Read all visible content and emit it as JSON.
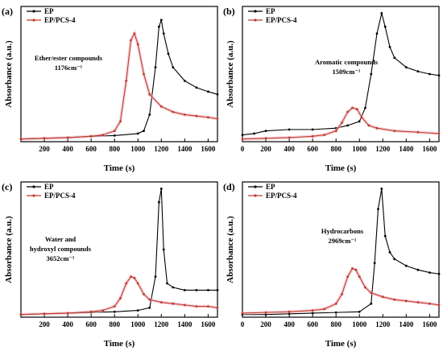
{
  "chart_data": [
    {
      "type": "line",
      "panel_label": "(a)",
      "xlabel": "Time (s)",
      "ylabel": "Absorbance (a.u.)",
      "xlim": [
        0,
        1680
      ],
      "ylim": [
        0,
        1
      ],
      "xticks": [
        200,
        400,
        600,
        800,
        1000,
        1200,
        1400,
        1600
      ],
      "legend_position": "top-left",
      "annotation": [
        "Ether/ester compounds",
        "1176cm⁻¹"
      ],
      "series": [
        {
          "name": "EP",
          "color": "#000000",
          "x": [
            0,
            200,
            400,
            600,
            800,
            1000,
            1050,
            1100,
            1150,
            1180,
            1200,
            1220,
            1260,
            1300,
            1400,
            1500,
            1600,
            1680
          ],
          "y": [
            0.02,
            0.025,
            0.03,
            0.04,
            0.045,
            0.06,
            0.08,
            0.2,
            0.55,
            0.85,
            0.9,
            0.8,
            0.65,
            0.55,
            0.45,
            0.4,
            0.37,
            0.35
          ]
        },
        {
          "name": "EP/PCS-4",
          "color": "#c0392b",
          "x": [
            0,
            200,
            400,
            600,
            700,
            800,
            850,
            900,
            940,
            970,
            1000,
            1050,
            1100,
            1200,
            1300,
            1400,
            1500,
            1600,
            1680
          ],
          "y": [
            0.02,
            0.025,
            0.03,
            0.04,
            0.05,
            0.08,
            0.15,
            0.45,
            0.75,
            0.8,
            0.72,
            0.5,
            0.35,
            0.26,
            0.22,
            0.2,
            0.19,
            0.18,
            0.17
          ]
        }
      ]
    },
    {
      "type": "line",
      "panel_label": "(b)",
      "xlabel": "Time (s)",
      "ylabel": "Absorbance (a.u.)",
      "xlim": [
        0,
        1680
      ],
      "ylim": [
        0,
        1
      ],
      "xticks": [
        0,
        200,
        400,
        600,
        800,
        1000,
        1200,
        1400,
        1600
      ],
      "legend_position": "top-left",
      "annotation": [
        "Aromatic compounds",
        "1509cm⁻¹"
      ],
      "series": [
        {
          "name": "EP",
          "color": "#000000",
          "x": [
            0,
            100,
            200,
            400,
            600,
            800,
            900,
            1000,
            1050,
            1100,
            1150,
            1190,
            1220,
            1260,
            1300,
            1400,
            1500,
            1600,
            1680
          ],
          "y": [
            0.05,
            0.06,
            0.08,
            0.09,
            0.09,
            0.1,
            0.12,
            0.15,
            0.25,
            0.5,
            0.8,
            0.95,
            0.85,
            0.7,
            0.62,
            0.55,
            0.52,
            0.5,
            0.49
          ]
        },
        {
          "name": "EP/PCS-4",
          "color": "#c0392b",
          "x": [
            0,
            200,
            400,
            600,
            700,
            800,
            850,
            900,
            940,
            980,
            1020,
            1080,
            1150,
            1300,
            1500,
            1680
          ],
          "y": [
            0.02,
            0.025,
            0.03,
            0.04,
            0.05,
            0.08,
            0.14,
            0.22,
            0.25,
            0.24,
            0.18,
            0.12,
            0.1,
            0.08,
            0.07,
            0.06
          ]
        }
      ]
    },
    {
      "type": "line",
      "panel_label": "(c)",
      "xlabel": "Time (s)",
      "ylabel": "Absorbance (a.u.)",
      "xlim": [
        0,
        1680
      ],
      "ylim": [
        0,
        1
      ],
      "xticks": [
        200,
        400,
        600,
        800,
        1000,
        1200,
        1400,
        1600
      ],
      "legend_position": "top-left",
      "annotation": [
        "Water and",
        "hydroxyl compounds",
        "3652cm⁻¹"
      ],
      "series": [
        {
          "name": "EP",
          "color": "#000000",
          "x": [
            0,
            200,
            400,
            600,
            800,
            1000,
            1100,
            1150,
            1180,
            1200,
            1220,
            1250,
            1300,
            1400,
            1500,
            1600,
            1680
          ],
          "y": [
            0.02,
            0.025,
            0.03,
            0.035,
            0.04,
            0.05,
            0.07,
            0.3,
            0.85,
            0.95,
            0.5,
            0.25,
            0.22,
            0.2,
            0.2,
            0.2,
            0.2
          ]
        },
        {
          "name": "EP/PCS-4",
          "color": "#c0392b",
          "x": [
            0,
            200,
            400,
            600,
            700,
            800,
            850,
            900,
            940,
            970,
            1000,
            1050,
            1100,
            1200,
            1300,
            1400,
            1500,
            1600,
            1680
          ],
          "y": [
            0.02,
            0.025,
            0.03,
            0.04,
            0.05,
            0.08,
            0.14,
            0.25,
            0.3,
            0.29,
            0.25,
            0.17,
            0.13,
            0.11,
            0.1,
            0.09,
            0.08,
            0.08,
            0.07
          ]
        }
      ]
    },
    {
      "type": "line",
      "panel_label": "(d)",
      "xlabel": "Time (s)",
      "ylabel": "Absorbance (a.u.)",
      "xlim": [
        0,
        1680
      ],
      "ylim": [
        0,
        1
      ],
      "xticks": [
        0,
        200,
        400,
        600,
        800,
        1000,
        1200,
        1400,
        1600
      ],
      "legend_position": "top-left",
      "annotation": [
        "Hydrocarbons",
        "2969cm⁻¹"
      ],
      "series": [
        {
          "name": "EP",
          "color": "#000000",
          "x": [
            0,
            200,
            400,
            600,
            800,
            1000,
            1100,
            1130,
            1160,
            1190,
            1220,
            1260,
            1300,
            1400,
            1500,
            1600,
            1680
          ],
          "y": [
            0.02,
            0.02,
            0.025,
            0.03,
            0.035,
            0.04,
            0.1,
            0.4,
            0.8,
            0.95,
            0.6,
            0.48,
            0.43,
            0.38,
            0.35,
            0.33,
            0.32
          ]
        },
        {
          "name": "EP/PCS-4",
          "color": "#c0392b",
          "x": [
            0,
            200,
            400,
            600,
            700,
            800,
            850,
            900,
            940,
            970,
            1000,
            1050,
            1100,
            1200,
            1300,
            1400,
            1500,
            1600,
            1680
          ],
          "y": [
            0.03,
            0.035,
            0.04,
            0.05,
            0.06,
            0.1,
            0.17,
            0.3,
            0.36,
            0.35,
            0.3,
            0.22,
            0.18,
            0.15,
            0.13,
            0.12,
            0.11,
            0.1,
            0.09
          ]
        }
      ]
    }
  ]
}
